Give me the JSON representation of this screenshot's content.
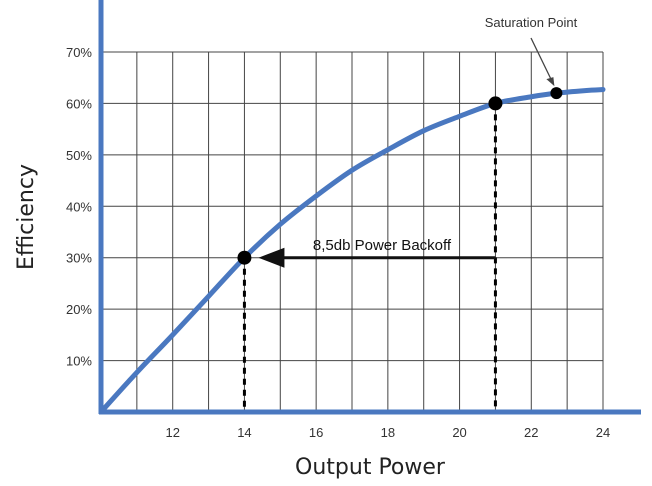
{
  "chart_data": {
    "type": "line",
    "title": "",
    "xlabel": "Output Power",
    "ylabel": "Efficiency",
    "xlim": [
      10,
      24
    ],
    "ylim": [
      0,
      70
    ],
    "x_ticks": [
      12,
      14,
      16,
      18,
      20,
      22,
      24
    ],
    "x_tick_labels": [
      "12",
      "14",
      "16",
      "18",
      "20",
      "22",
      "24"
    ],
    "y_ticks": [
      10,
      20,
      30,
      40,
      50,
      60,
      70
    ],
    "y_tick_labels": [
      "10%",
      "20%",
      "30%",
      "40%",
      "50%",
      "60%",
      "70%"
    ],
    "grid": true,
    "series": [
      {
        "x": [
          10.0,
          11.0,
          12.0,
          13.0,
          14.0,
          15.0,
          16.0,
          17.0,
          18.0,
          19.0,
          20.0,
          21.0,
          22.0,
          22.7,
          23.5,
          24.0
        ],
        "y": [
          0.0,
          7.7,
          15.0,
          22.5,
          30.0,
          36.5,
          42.0,
          47.0,
          51.0,
          54.7,
          57.5,
          60.0,
          61.3,
          62.0,
          62.5,
          62.7
        ],
        "color": "#4a78c0"
      }
    ],
    "points": [
      {
        "x": 14.0,
        "y": 30.0
      },
      {
        "x": 21.0,
        "y": 60.0
      },
      {
        "x": 22.7,
        "y": 62.0
      }
    ],
    "annotations": [
      {
        "text": "8,5db Power Backoff",
        "type": "arrow",
        "from": {
          "x": 21.0,
          "y": 30.0
        },
        "to": {
          "x": 14.0,
          "y": 30.0
        }
      },
      {
        "text": "Saturation Point",
        "type": "label",
        "target": {
          "x": 22.7,
          "y": 62.0
        }
      }
    ],
    "dashed_drops": [
      14.0,
      21.0
    ]
  }
}
